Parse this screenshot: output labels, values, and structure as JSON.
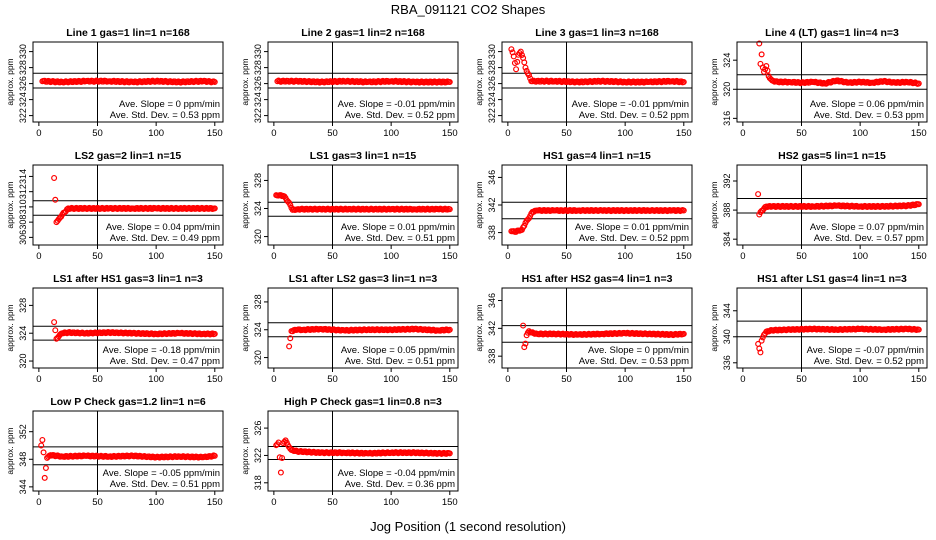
{
  "figure": {
    "title": "RBA_091121  CO2 Shapes",
    "xlabel": "Jog Position (1 second resolution)"
  },
  "colors": {
    "points": "#ff0000",
    "frame": "#000000",
    "background": "#ffffff"
  },
  "chart_data": [
    {
      "type": "scatter",
      "title": "Line 1 gas=1 lin=1 n=168",
      "ylabel": "approx. ppm",
      "xticks": [
        0,
        50,
        100,
        150
      ],
      "yticks": [
        322,
        324,
        326,
        328,
        330
      ],
      "ylim": [
        321.2,
        331.2
      ],
      "xlim": [
        -5,
        157
      ],
      "hlines": [
        325.45,
        327.3
      ],
      "vline": 50,
      "slope_label": "Ave. Slope = ",
      "slope": "0",
      "slope_unit": "ppm/min",
      "std_label": "Ave. Std. Dev. = ",
      "std": "0.53",
      "std_unit": "ppm",
      "x": [
        3,
        20,
        40,
        60,
        80,
        100,
        120,
        140,
        150
      ],
      "y": [
        326.3,
        326.2,
        326.3,
        326.3,
        326.2,
        326.3,
        326.2,
        326.3,
        326.2
      ]
    },
    {
      "type": "scatter",
      "title": "Line 2 gas=1 lin=2 n=168",
      "ylabel": "approx. ppm",
      "xticks": [
        0,
        50,
        100,
        150
      ],
      "yticks": [
        322,
        324,
        326,
        328,
        330
      ],
      "ylim": [
        321.2,
        331.2
      ],
      "xlim": [
        -5,
        157
      ],
      "hlines": [
        325.45,
        327.3
      ],
      "vline": 50,
      "slope_label": "Ave. Slope = ",
      "slope": "-0.01",
      "slope_unit": "ppm/min",
      "std_label": "Ave. Std. Dev. = ",
      "std": "0.52",
      "std_unit": "ppm",
      "x": [
        3,
        20,
        40,
        60,
        80,
        100,
        120,
        140,
        150
      ],
      "y": [
        326.3,
        326.3,
        326.2,
        326.3,
        326.2,
        326.3,
        326.2,
        326.2,
        326.2
      ]
    },
    {
      "type": "scatter",
      "title": "Line 3 gas=1 lin=3 n=168",
      "ylabel": "approx. ppm",
      "xticks": [
        0,
        50,
        100,
        150
      ],
      "yticks": [
        322,
        324,
        326,
        328,
        330
      ],
      "ylim": [
        321.2,
        331.2
      ],
      "xlim": [
        -5,
        157
      ],
      "hlines": [
        325.45,
        327.3
      ],
      "vline": 50,
      "slope_label": "Ave. Slope = ",
      "slope": "-0.01",
      "slope_unit": "ppm/min",
      "std_label": "Ave. Std. Dev. = ",
      "std": "0.52",
      "std_unit": "ppm",
      "x": [
        3,
        5,
        7,
        9,
        11,
        13,
        15,
        20,
        40,
        60,
        80,
        100,
        120,
        140,
        150
      ],
      "y": [
        330.3,
        329.4,
        327.8,
        329.6,
        330.0,
        329.2,
        328.0,
        326.3,
        326.3,
        326.2,
        326.3,
        326.2,
        326.2,
        326.3,
        326.2
      ]
    },
    {
      "type": "scatter",
      "title": "Line 4 (LT) gas=1 lin=4 n=3",
      "ylabel": "approx. ppm",
      "xticks": [
        0,
        50,
        100,
        150
      ],
      "yticks": [
        316,
        320,
        324
      ],
      "ylim": [
        315.5,
        326.5
      ],
      "xlim": [
        -5,
        157
      ],
      "hlines": [
        320.0,
        322.0
      ],
      "vline": 50,
      "slope_label": "Ave. Slope = ",
      "slope": "0.06",
      "slope_unit": "ppm/min",
      "std_label": "Ave. Std. Dev. = ",
      "std": "0.53",
      "std_unit": "ppm",
      "x": [
        14,
        15,
        16,
        17,
        18,
        20,
        22,
        25,
        30,
        40,
        50,
        60,
        70,
        80,
        90,
        100,
        110,
        120,
        130,
        140,
        150
      ],
      "y": [
        326.3,
        323.5,
        324.8,
        323.0,
        322.4,
        323.2,
        321.8,
        321.2,
        321.0,
        321.0,
        320.9,
        321.0,
        320.8,
        321.2,
        320.9,
        321.0,
        320.9,
        321.1,
        320.9,
        321.0,
        320.8
      ]
    },
    {
      "type": "scatter",
      "title": "LS2 gas=2 lin=1 n=15",
      "ylabel": "approx. ppm",
      "xticks": [
        0,
        50,
        100,
        150
      ],
      "yticks": [
        306,
        308,
        310,
        312,
        314
      ],
      "ylim": [
        305,
        315.5
      ],
      "xlim": [
        -5,
        157
      ],
      "hlines": [
        308.9,
        310.8
      ],
      "vline": 50,
      "slope_label": "Ave. Slope = ",
      "slope": "0.04",
      "slope_unit": "ppm/min",
      "std_label": "Ave. Std. Dev. = ",
      "std": "0.49",
      "std_unit": "ppm",
      "x": [
        13,
        15,
        17,
        20,
        25,
        40,
        60,
        80,
        100,
        120,
        140,
        150
      ],
      "y": [
        313.8,
        308.0,
        308.4,
        309.0,
        309.8,
        309.8,
        309.8,
        309.8,
        309.8,
        309.8,
        309.8,
        309.8
      ]
    },
    {
      "type": "scatter",
      "title": "LS1 gas=3 lin=1 n=15",
      "ylabel": "approx. ppm",
      "xticks": [
        0,
        50,
        100,
        150
      ],
      "yticks": [
        320,
        324,
        328
      ],
      "ylim": [
        318.8,
        330.2
      ],
      "xlim": [
        -5,
        157
      ],
      "hlines": [
        322.9,
        324.9
      ],
      "vline": 50,
      "slope_label": "Ave. Slope = ",
      "slope": "0.01",
      "slope_unit": "ppm/min",
      "std_label": "Ave. Std. Dev. = ",
      "std": "0.51",
      "std_unit": "ppm",
      "x": [
        2,
        5,
        8,
        10,
        12,
        14,
        16,
        20,
        40,
        60,
        80,
        100,
        120,
        140,
        150
      ],
      "y": [
        325.9,
        325.9,
        325.8,
        325.5,
        325.0,
        324.5,
        323.8,
        323.9,
        323.9,
        323.9,
        323.9,
        323.9,
        323.9,
        323.9,
        323.9
      ]
    },
    {
      "type": "scatter",
      "title": "HS1 gas=4 lin=1 n=15",
      "ylabel": "approx. ppm",
      "xticks": [
        0,
        50,
        100,
        150
      ],
      "yticks": [
        338,
        342,
        346
      ],
      "ylim": [
        336.2,
        347.8
      ],
      "xlim": [
        -5,
        157
      ],
      "hlines": [
        340.0,
        342.4
      ],
      "vline": 50,
      "slope_label": "Ave. Slope = ",
      "slope": "0.01",
      "slope_unit": "ppm/min",
      "std_label": "Ave. Std. Dev. = ",
      "std": "0.52",
      "std_unit": "ppm",
      "x": [
        3,
        6,
        9,
        12,
        15,
        17,
        19,
        21,
        25,
        40,
        60,
        80,
        100,
        120,
        140,
        150
      ],
      "y": [
        338.2,
        338.1,
        338.3,
        338.4,
        339.4,
        339.9,
        340.4,
        341.0,
        341.2,
        341.2,
        341.2,
        341.2,
        341.2,
        341.2,
        341.2,
        341.2
      ]
    },
    {
      "type": "scatter",
      "title": "HS2 gas=5 lin=1 n=15",
      "ylabel": "approx. ppm",
      "xticks": [
        0,
        50,
        100,
        150
      ],
      "yticks": [
        384,
        388,
        392
      ],
      "ylim": [
        383.2,
        394.2
      ],
      "xlim": [
        -5,
        157
      ],
      "hlines": [
        387.6,
        389.6
      ],
      "vline": 50,
      "slope_label": "Ave. Slope = ",
      "slope": "0.07",
      "slope_unit": "ppm/min",
      "std_label": "Ave. Std. Dev. = ",
      "std": "0.57",
      "std_unit": "ppm",
      "x": [
        13,
        14,
        16,
        18,
        20,
        25,
        40,
        60,
        80,
        100,
        120,
        140,
        150
      ],
      "y": [
        390.2,
        387.4,
        387.9,
        388.2,
        388.5,
        388.5,
        388.5,
        388.5,
        388.6,
        388.5,
        388.5,
        388.6,
        388.8
      ]
    },
    {
      "type": "scatter",
      "title": "LS1 after HS1 gas=3 lin=1 n=3",
      "ylabel": "approx. ppm",
      "xticks": [
        0,
        50,
        100,
        150
      ],
      "yticks": [
        320,
        324,
        328
      ],
      "ylim": [
        319.0,
        330.5
      ],
      "xlim": [
        -5,
        157
      ],
      "hlines": [
        323.0,
        325.0
      ],
      "vline": 50,
      "slope_label": "Ave. Slope = ",
      "slope": "-0.18",
      "slope_unit": "ppm/min",
      "std_label": "Ave. Std. Dev. = ",
      "std": "0.47",
      "std_unit": "ppm",
      "x": [
        13,
        15,
        18,
        20,
        25,
        40,
        60,
        80,
        100,
        120,
        140,
        150
      ],
      "y": [
        325.6,
        323.2,
        323.8,
        324.0,
        324.1,
        324.0,
        324.1,
        324.0,
        323.9,
        324.0,
        323.9,
        323.9
      ]
    },
    {
      "type": "scatter",
      "title": "LS1 after LS2 gas=3 lin=1 n=3",
      "ylabel": "approx. ppm",
      "xticks": [
        0,
        50,
        100,
        150
      ],
      "yticks": [
        320,
        324,
        328
      ],
      "ylim": [
        318.5,
        330.0
      ],
      "xlim": [
        -5,
        157
      ],
      "hlines": [
        323.0,
        325.0
      ],
      "vline": 50,
      "slope_label": "Ave. Slope = ",
      "slope": "0.05",
      "slope_unit": "ppm/min",
      "std_label": "Ave. Std. Dev. = ",
      "std": "0.51",
      "std_unit": "ppm",
      "x": [
        13,
        15,
        18,
        20,
        25,
        40,
        60,
        80,
        100,
        120,
        140,
        150
      ],
      "y": [
        321.6,
        323.8,
        324.0,
        324.0,
        324.0,
        324.1,
        323.9,
        324.0,
        324.0,
        324.1,
        323.9,
        324.0
      ]
    },
    {
      "type": "scatter",
      "title": "HS1 after HS2 gas=4 lin=1 n=3",
      "ylabel": "approx. ppm",
      "xticks": [
        0,
        50,
        100,
        150
      ],
      "yticks": [
        338,
        342,
        346
      ],
      "ylim": [
        336.3,
        347.8
      ],
      "xlim": [
        -5,
        157
      ],
      "hlines": [
        340.0,
        342.4
      ],
      "vline": 50,
      "slope_label": "Ave. Slope = ",
      "slope": "0",
      "slope_unit": "ppm/min",
      "std_label": "Ave. Std. Dev. = ",
      "std": "0.53",
      "std_unit": "ppm",
      "x": [
        13,
        14,
        15,
        16,
        18,
        20,
        25,
        40,
        60,
        80,
        100,
        120,
        140,
        150
      ],
      "y": [
        342.4,
        339.3,
        339.8,
        341.0,
        341.6,
        341.4,
        341.2,
        341.2,
        341.1,
        341.2,
        341.3,
        341.2,
        341.1,
        341.2
      ]
    },
    {
      "type": "scatter",
      "title": "HS1 after LS1 gas=4 lin=1 n=3",
      "ylabel": "approx. ppm",
      "xticks": [
        0,
        50,
        100,
        150
      ],
      "yticks": [
        336,
        340,
        344
      ],
      "ylim": [
        335.2,
        347.5
      ],
      "xlim": [
        -5,
        157
      ],
      "hlines": [
        340.0,
        342.4
      ],
      "vline": 50,
      "slope_label": "Ave. Slope = ",
      "slope": "-0.07",
      "slope_unit": "ppm/min",
      "std_label": "Ave. Std. Dev. = ",
      "std": "0.52",
      "std_unit": "ppm",
      "x": [
        13,
        14,
        15,
        16,
        18,
        20,
        25,
        40,
        60,
        80,
        100,
        120,
        140,
        150
      ],
      "y": [
        338.9,
        338.2,
        337.6,
        339.4,
        340.3,
        340.8,
        341.0,
        341.1,
        341.2,
        341.1,
        341.2,
        341.1,
        341.2,
        341.1
      ]
    },
    {
      "type": "scatter",
      "title": "Low P Check gas=1.2 lin=1 n=6",
      "ylabel": "approx. ppm",
      "xticks": [
        0,
        50,
        100,
        150
      ],
      "yticks": [
        344,
        348,
        352
      ],
      "ylim": [
        343.4,
        355.0
      ],
      "xlim": [
        -5,
        157
      ],
      "hlines": [
        347.2,
        349.8
      ],
      "vline": 50,
      "slope_label": "Ave. Slope = ",
      "slope": "-0.05",
      "slope_unit": "ppm/min",
      "std_label": "Ave. Std. Dev. = ",
      "std": "0.51",
      "std_unit": "ppm",
      "x": [
        2,
        3,
        4,
        5,
        7,
        10,
        20,
        40,
        60,
        80,
        100,
        120,
        140,
        150
      ],
      "y": [
        350.0,
        350.8,
        349.0,
        345.3,
        348.2,
        348.6,
        348.4,
        348.5,
        348.4,
        348.5,
        348.3,
        348.4,
        348.3,
        348.5
      ]
    },
    {
      "type": "scatter",
      "title": "High P Check gas=1 lin=0.8 n=3",
      "ylabel": "approx. ppm",
      "xticks": [
        0,
        50,
        100,
        150
      ],
      "yticks": [
        318,
        322,
        326
      ],
      "ylim": [
        316.8,
        328.5
      ],
      "xlim": [
        -5,
        157
      ],
      "hlines": [
        321.4,
        323.3
      ],
      "vline": 50,
      "slope_label": "Ave. Slope = ",
      "slope": "-0.04",
      "slope_unit": "ppm/min",
      "std_label": "Ave. Std. Dev. = ",
      "std": "0.36",
      "std_unit": "ppm",
      "x": [
        2,
        4,
        6,
        8,
        10,
        12,
        15,
        20,
        40,
        60,
        80,
        100,
        120,
        140,
        150
      ],
      "y": [
        323.5,
        323.9,
        319.5,
        323.8,
        324.2,
        323.5,
        322.8,
        322.6,
        322.4,
        322.4,
        322.3,
        322.4,
        322.4,
        322.3,
        322.3
      ]
    }
  ]
}
